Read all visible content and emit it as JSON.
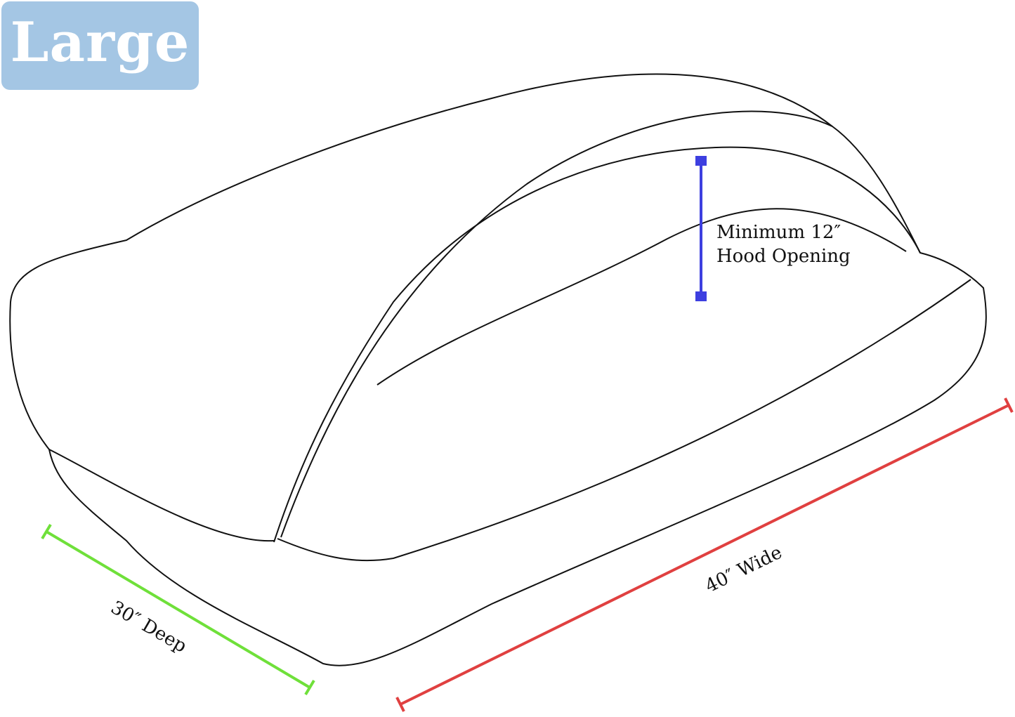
{
  "size_badge": "Large",
  "hood_label": {
    "line1": "Minimum 12″",
    "line2": "Hood Opening"
  },
  "width_label": "40″ Wide",
  "depth_label": "30″ Deep",
  "colors": {
    "badge": "#a4c6e4",
    "hood": "#3d3fe0",
    "width": "#e04040",
    "depth": "#6fe03a",
    "outline": "#111111"
  }
}
